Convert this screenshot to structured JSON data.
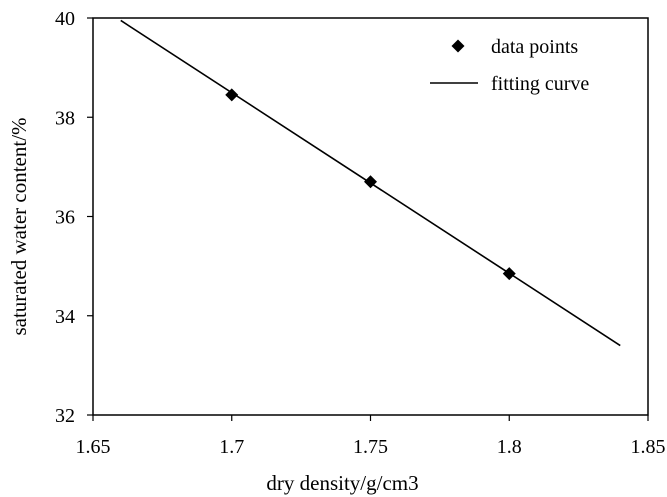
{
  "chart_data": {
    "type": "scatter",
    "title": "",
    "xlabel": "dry density/g/cm3",
    "ylabel": "saturated water content/%",
    "xlim": [
      1.65,
      1.85
    ],
    "ylim": [
      32,
      40
    ],
    "xticks": [
      1.65,
      1.7,
      1.75,
      1.8,
      1.85
    ],
    "xtick_labels": [
      "1.65",
      "1.7",
      "1.75",
      "1.8",
      "1.85"
    ],
    "yticks": [
      32,
      34,
      36,
      38,
      40
    ],
    "ytick_labels": [
      "32",
      "34",
      "36",
      "38",
      "40"
    ],
    "grid": false,
    "legend_position": "top-right",
    "series": [
      {
        "name": "data points",
        "kind": "markers",
        "marker": "diamond",
        "color": "#000000",
        "x": [
          1.7,
          1.75,
          1.8
        ],
        "y": [
          38.45,
          36.7,
          34.85
        ]
      },
      {
        "name": "fitting curve",
        "kind": "line",
        "color": "#000000",
        "x": [
          1.66,
          1.84
        ],
        "y": [
          39.95,
          33.4
        ]
      }
    ]
  }
}
